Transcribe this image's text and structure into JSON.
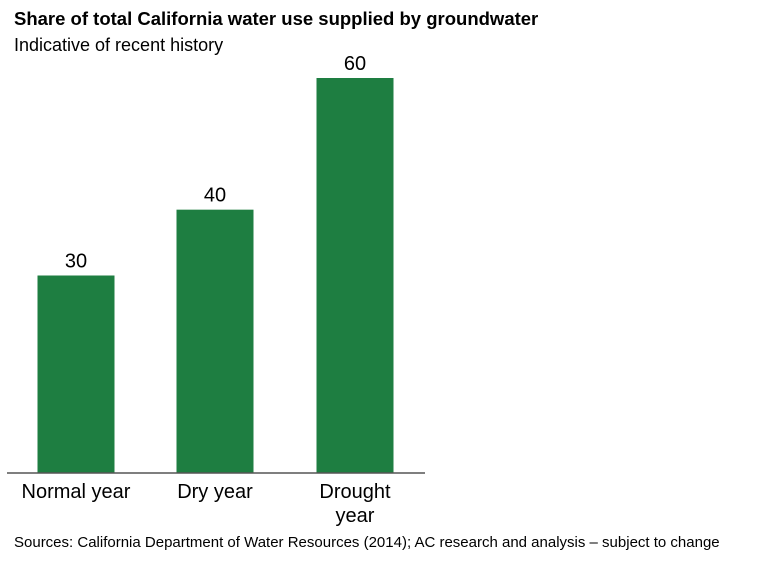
{
  "title": "Share of total California water use supplied by groundwater",
  "subtitle": "Indicative of recent history",
  "source": "Sources: California Department of Water Resources (2014); AC research and analysis – subject to change",
  "colors": {
    "bar": "#1e7e41",
    "axis": "#555555",
    "text": "#000000"
  },
  "chart_data": {
    "type": "bar",
    "title": "Share of total California water use supplied by groundwater",
    "subtitle": "Indicative of recent history",
    "categories": [
      [
        "Normal year"
      ],
      [
        "Dry year"
      ],
      [
        "Drought",
        "year"
      ]
    ],
    "values": [
      30,
      40,
      60
    ],
    "data_labels": [
      "30",
      "40",
      "60"
    ],
    "ylim": [
      0,
      60
    ],
    "grid": false,
    "legend": "none"
  }
}
